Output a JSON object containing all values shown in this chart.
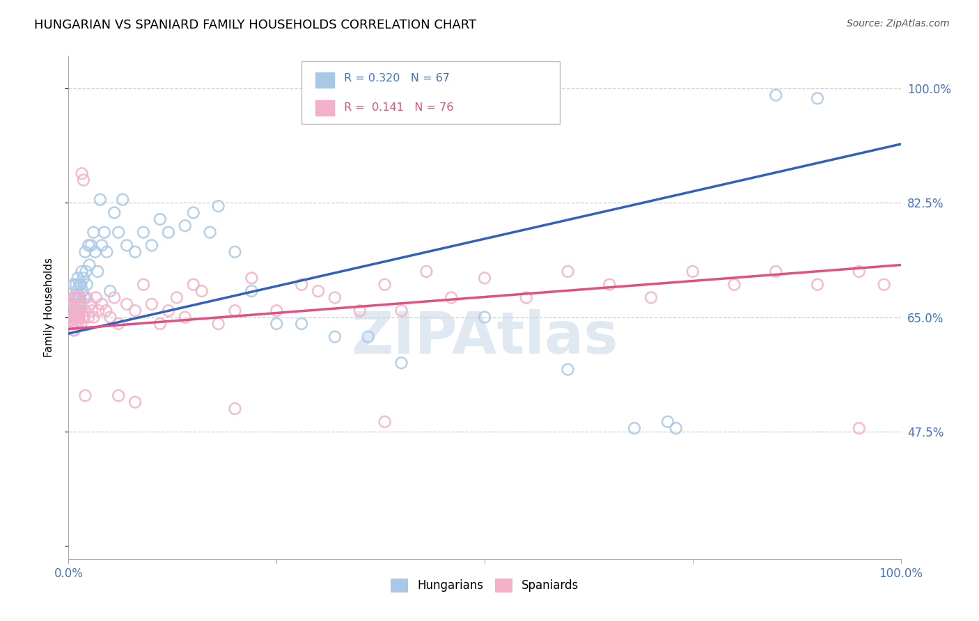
{
  "title": "HUNGARIAN VS SPANIARD FAMILY HOUSEHOLDS CORRELATION CHART",
  "source": "Source: ZipAtlas.com",
  "ylabel": "Family Households",
  "yticks": [
    0.3,
    0.475,
    0.65,
    0.825,
    1.0
  ],
  "ytick_labels": [
    "",
    "47.5%",
    "65.0%",
    "82.5%",
    "100.0%"
  ],
  "xlim": [
    0.0,
    1.0
  ],
  "ylim": [
    0.28,
    1.05
  ],
  "R_hungarian": 0.32,
  "N_hungarian": 67,
  "R_spaniard": 0.141,
  "N_spaniard": 76,
  "color_hungarian": "#a8c8e8",
  "color_spaniard": "#f4b0c8",
  "color_hungarian_line": "#3060c0",
  "color_spaniard_line": "#e05080",
  "legend_label_hungarian": "Hungarians",
  "legend_label_spaniard": "Spaniards",
  "watermark": "ZIPAtlas",
  "hun_line_x": [
    0.0,
    1.0
  ],
  "hun_line_y": [
    0.625,
    0.915
  ],
  "spa_line_x": [
    0.0,
    1.0
  ],
  "spa_line_y": [
    0.632,
    0.73
  ],
  "hungarian_x": [
    0.003,
    0.004,
    0.005,
    0.006,
    0.006,
    0.007,
    0.007,
    0.008,
    0.008,
    0.009,
    0.009,
    0.01,
    0.01,
    0.011,
    0.011,
    0.012,
    0.012,
    0.013,
    0.013,
    0.014,
    0.015,
    0.015,
    0.016,
    0.017,
    0.018,
    0.019,
    0.02,
    0.021,
    0.022,
    0.024,
    0.025,
    0.027,
    0.03,
    0.032,
    0.035,
    0.038,
    0.04,
    0.043,
    0.046,
    0.05,
    0.055,
    0.06,
    0.065,
    0.07,
    0.08,
    0.09,
    0.1,
    0.11,
    0.12,
    0.14,
    0.15,
    0.17,
    0.18,
    0.2,
    0.22,
    0.25,
    0.28,
    0.32,
    0.36,
    0.4,
    0.5,
    0.6,
    0.68,
    0.72,
    0.73,
    0.85,
    0.9
  ],
  "hungarian_y": [
    0.66,
    0.64,
    0.68,
    0.65,
    0.7,
    0.63,
    0.67,
    0.68,
    0.66,
    0.65,
    0.7,
    0.66,
    0.69,
    0.67,
    0.71,
    0.65,
    0.68,
    0.66,
    0.7,
    0.68,
    0.67,
    0.7,
    0.72,
    0.69,
    0.71,
    0.68,
    0.75,
    0.72,
    0.7,
    0.76,
    0.73,
    0.76,
    0.78,
    0.75,
    0.72,
    0.83,
    0.76,
    0.78,
    0.75,
    0.69,
    0.81,
    0.78,
    0.83,
    0.76,
    0.75,
    0.78,
    0.76,
    0.8,
    0.78,
    0.79,
    0.81,
    0.78,
    0.82,
    0.75,
    0.69,
    0.64,
    0.64,
    0.62,
    0.62,
    0.58,
    0.65,
    0.57,
    0.48,
    0.49,
    0.48,
    0.99,
    0.985
  ],
  "spaniard_x": [
    0.003,
    0.004,
    0.004,
    0.005,
    0.006,
    0.006,
    0.007,
    0.007,
    0.008,
    0.008,
    0.009,
    0.009,
    0.01,
    0.01,
    0.011,
    0.012,
    0.012,
    0.013,
    0.014,
    0.015,
    0.016,
    0.017,
    0.018,
    0.019,
    0.02,
    0.022,
    0.024,
    0.026,
    0.028,
    0.03,
    0.033,
    0.036,
    0.04,
    0.045,
    0.05,
    0.055,
    0.06,
    0.07,
    0.08,
    0.09,
    0.1,
    0.11,
    0.12,
    0.13,
    0.14,
    0.15,
    0.16,
    0.18,
    0.2,
    0.22,
    0.25,
    0.28,
    0.3,
    0.32,
    0.35,
    0.38,
    0.4,
    0.43,
    0.46,
    0.5,
    0.55,
    0.6,
    0.65,
    0.7,
    0.75,
    0.8,
    0.85,
    0.9,
    0.95,
    0.98,
    0.02,
    0.06,
    0.08,
    0.2,
    0.38,
    0.95
  ],
  "spaniard_y": [
    0.66,
    0.64,
    0.67,
    0.65,
    0.63,
    0.68,
    0.64,
    0.67,
    0.65,
    0.68,
    0.64,
    0.66,
    0.65,
    0.68,
    0.64,
    0.66,
    0.68,
    0.65,
    0.66,
    0.64,
    0.87,
    0.65,
    0.86,
    0.65,
    0.66,
    0.68,
    0.65,
    0.67,
    0.66,
    0.65,
    0.68,
    0.66,
    0.67,
    0.66,
    0.65,
    0.68,
    0.64,
    0.67,
    0.66,
    0.7,
    0.67,
    0.64,
    0.66,
    0.68,
    0.65,
    0.7,
    0.69,
    0.64,
    0.66,
    0.71,
    0.66,
    0.7,
    0.69,
    0.68,
    0.66,
    0.7,
    0.66,
    0.72,
    0.68,
    0.71,
    0.68,
    0.72,
    0.7,
    0.68,
    0.72,
    0.7,
    0.72,
    0.7,
    0.72,
    0.7,
    0.53,
    0.53,
    0.52,
    0.51,
    0.49,
    0.48
  ]
}
